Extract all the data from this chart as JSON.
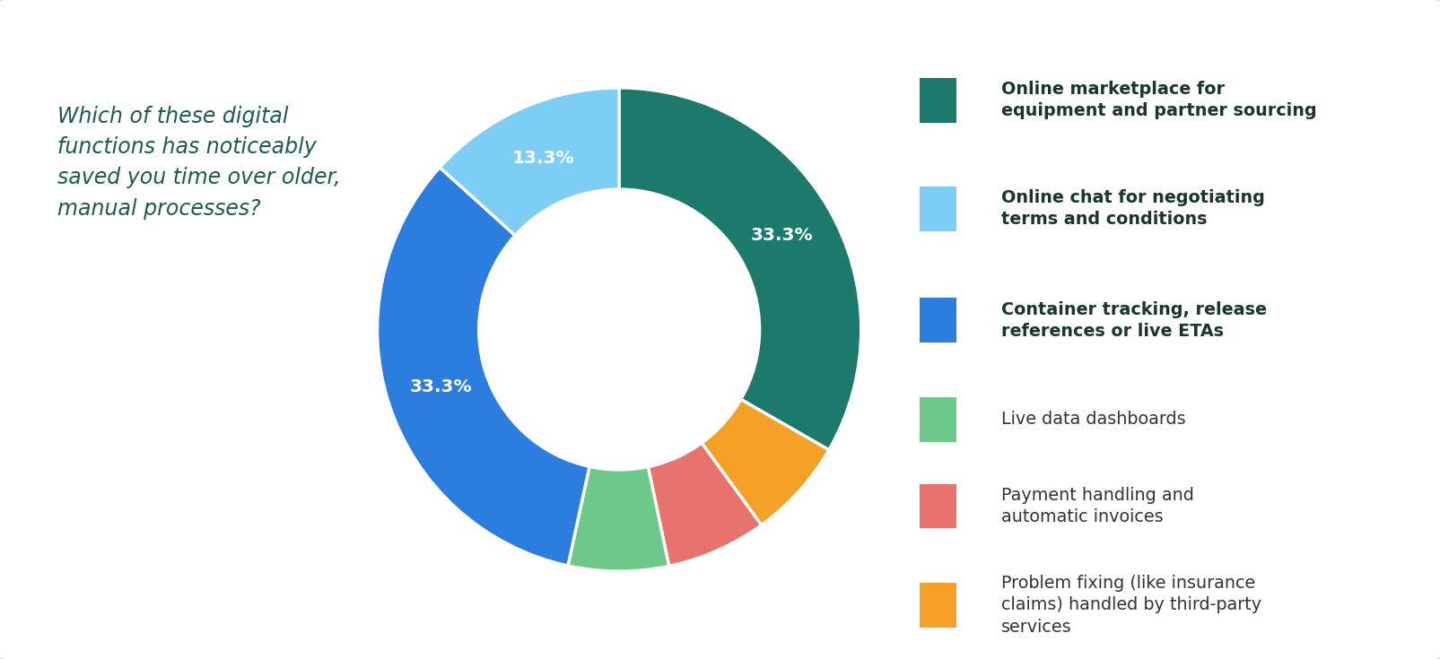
{
  "title": "Which of these digital\nfunctions has noticeably\nsaved you time over older,\nmanual processes?",
  "segments": [
    {
      "label": "Online marketplace for\nequipment and partner sourcing",
      "value": 33.3,
      "color": "#1b7a6b",
      "show_pct": true,
      "pct_text": "33.3%"
    },
    {
      "label": "Online chat for negotiating\nterms and conditions",
      "value": 13.3,
      "color": "#7dcef4",
      "show_pct": true,
      "pct_text": "13.3%"
    },
    {
      "label": "Container tracking, release\nreferences or live ETAs",
      "value": 33.3,
      "color": "#2b7de0",
      "show_pct": true,
      "pct_text": "33.3%"
    },
    {
      "label": "Live data dashboards",
      "value": 6.7,
      "color": "#6dc98a",
      "show_pct": false,
      "pct_text": ""
    },
    {
      "label": "Payment handling and\nautomatic invoices",
      "value": 6.7,
      "color": "#e8736e",
      "show_pct": false,
      "pct_text": ""
    },
    {
      "label": "Problem fixing (like insurance\nclaims) handled by third-party\nservices",
      "value": 6.7,
      "color": "#f5a127",
      "show_pct": false,
      "pct_text": ""
    }
  ],
  "pie_order": [
    0,
    5,
    4,
    3,
    2,
    1
  ],
  "legend_bold": [
    true,
    true,
    true,
    false,
    false,
    false
  ],
  "background_color": "#ffffff",
  "title_color": "#1a5c52",
  "label_color_bold": "#1a3530",
  "label_color_normal": "#333333",
  "border_color": "#d0d0d0"
}
